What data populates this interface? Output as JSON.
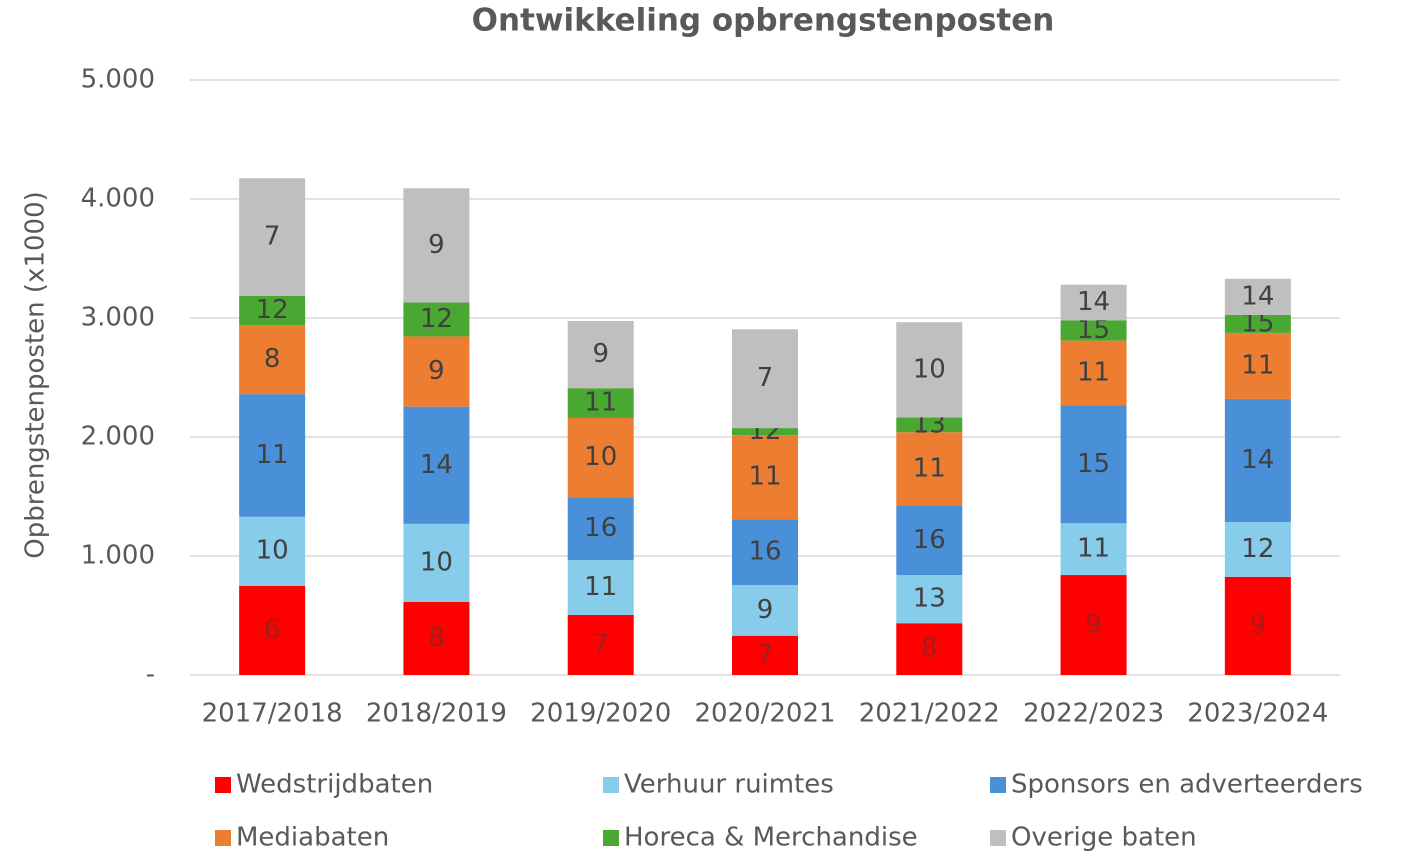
{
  "chart_data": {
    "type": "stacked_bar",
    "title": "Ontwikkeling opbrengstenposten",
    "y_label": "Opbrengstenposten (x1000)",
    "categories": [
      "2017/2018",
      "2018/2019",
      "2019/2020",
      "2020/2021",
      "2021/2022",
      "2022/2023",
      "2023/2024"
    ],
    "series": [
      {
        "name": "Wedstrijdbaten",
        "color": "#ff0000",
        "label_color": "#9c1f1f",
        "values": [
          750,
          615,
          505,
          330,
          435,
          840,
          825
        ],
        "labels": [
          6,
          8,
          7,
          7,
          8,
          9,
          9
        ]
      },
      {
        "name": "Verhuur ruimtes",
        "color": "#87cdeb",
        "label_color": "#404040",
        "values": [
          580,
          655,
          460,
          425,
          405,
          435,
          460
        ],
        "labels": [
          10,
          10,
          11,
          9,
          13,
          11,
          12
        ]
      },
      {
        "name": "Sponsors en adverteerders",
        "color": "#4a90d9",
        "label_color": "#404040",
        "values": [
          1030,
          985,
          530,
          555,
          580,
          990,
          1035
        ],
        "labels": [
          11,
          14,
          16,
          16,
          16,
          15,
          14
        ]
      },
      {
        "name": "Mediabaten",
        "color": "#ed7d31",
        "label_color": "#404040",
        "values": [
          580,
          590,
          665,
          705,
          620,
          545,
          555
        ],
        "labels": [
          8,
          9,
          10,
          11,
          11,
          11,
          11
        ]
      },
      {
        "name": "Horeca & Merchandise",
        "color": "#4aa832",
        "label_color": "#404040",
        "values": [
          245,
          285,
          250,
          60,
          125,
          170,
          150
        ],
        "labels": [
          12,
          12,
          11,
          12,
          13,
          15,
          15
        ]
      },
      {
        "name": "Overige baten",
        "color": "#bfbfbf",
        "label_color": "#404040",
        "values": [
          990,
          960,
          565,
          830,
          800,
          300,
          305
        ],
        "labels": [
          7,
          9,
          9,
          7,
          10,
          14,
          14
        ]
      }
    ],
    "ylim": [
      0,
      5000
    ],
    "yticks": [
      {
        "value": 0,
        "label": "-"
      },
      {
        "value": 1000,
        "label": "1.000"
      },
      {
        "value": 2000,
        "label": "2.000"
      },
      {
        "value": 3000,
        "label": "3.000"
      },
      {
        "value": 4000,
        "label": "4.000"
      },
      {
        "value": 5000,
        "label": "5.000"
      }
    ],
    "grid": true
  }
}
